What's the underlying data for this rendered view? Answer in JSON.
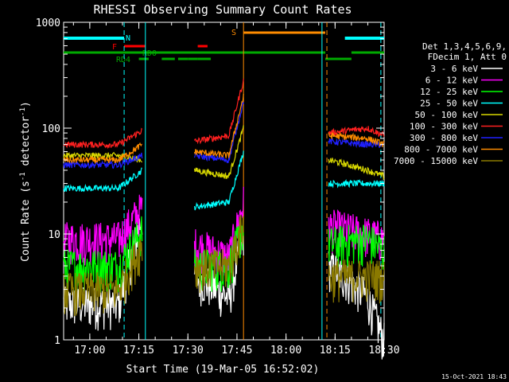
{
  "chart_data": {
    "type": "line",
    "title": "RHESSI Observing Summary Count Rates",
    "xlabel": "Start Time (19-Mar-05 16:52:02)",
    "ylabel_main": "Count Rate (s",
    "ylabel_sup1": "-1",
    "ylabel_mid": " detector",
    "ylabel_sup2": "-1",
    "ylabel_end": ")",
    "y_scale": "log",
    "ylim": [
      1,
      1000
    ],
    "xlim_minutes": [
      0,
      98
    ],
    "x_ticks": [
      {
        "m": 8,
        "label": "17:00"
      },
      {
        "m": 23,
        "label": "17:15"
      },
      {
        "m": 38,
        "label": "17:30"
      },
      {
        "m": 53,
        "label": "17:45"
      },
      {
        "m": 68,
        "label": "18:00"
      },
      {
        "m": 83,
        "label": "18:15"
      },
      {
        "m": 98,
        "label": "18:30"
      }
    ],
    "y_ticks": [
      {
        "v": 1,
        "label": "1"
      },
      {
        "v": 10,
        "label": "10"
      },
      {
        "v": 100,
        "label": "100"
      },
      {
        "v": 1000,
        "label": "1000"
      }
    ],
    "legend": {
      "placement": "right",
      "header": [
        "Det 1,3,4,5,6,9,",
        "FDecim 1, Att 0"
      ],
      "entries": [
        {
          "name": "3 - 6 keV",
          "color": "#ffffff"
        },
        {
          "name": "6 - 12 keV",
          "color": "#ff00ff"
        },
        {
          "name": "12 - 25 keV",
          "color": "#00ff00"
        },
        {
          "name": "25 - 50 keV",
          "color": "#00ffff"
        },
        {
          "name": "50 - 100 keV",
          "color": "#d8d800"
        },
        {
          "name": "100 - 300 keV",
          "color": "#ff2020"
        },
        {
          "name": "300 - 800 keV",
          "color": "#2020ff"
        },
        {
          "name": "800 - 7000 keV",
          "color": "#ff8c00"
        },
        {
          "name": "7000 - 15000 keV",
          "color": "#8b7a00"
        }
      ]
    },
    "flags": [
      {
        "label": "N",
        "color": "#00ffff",
        "intervals": [
          [
            0,
            18.5
          ],
          [
            86,
            98
          ]
        ]
      },
      {
        "label": "S",
        "color": "#ff8c00",
        "intervals": [
          [
            55,
            80
          ]
        ]
      },
      {
        "label": "F",
        "color": "#ff0000",
        "intervals": [
          [
            18.5,
            25
          ],
          [
            41,
            44
          ]
        ]
      },
      {
        "label": "RDO",
        "color": "#00aa00",
        "intervals": [
          [
            0,
            80
          ],
          [
            88,
            98
          ]
        ]
      },
      {
        "label": "RD4",
        "color": "#00aa00",
        "intervals": [
          [
            23,
            26
          ],
          [
            30,
            34
          ],
          [
            35,
            38
          ],
          [
            38,
            40
          ],
          [
            40,
            41
          ],
          [
            41,
            45
          ],
          [
            80,
            88
          ]
        ]
      }
    ],
    "vlines": [
      {
        "m": 18.5,
        "color": "#00ffff",
        "style": "dashed"
      },
      {
        "m": 25,
        "color": "#00ffff",
        "style": "solid"
      },
      {
        "m": 55,
        "color": "#ff8c00",
        "style": "solid"
      },
      {
        "m": 79,
        "color": "#00ffff",
        "style": "solid"
      },
      {
        "m": 80.5,
        "color": "#ff8c00",
        "style": "dashed"
      },
      {
        "m": 97,
        "color": "#00ffff",
        "style": "dashed"
      }
    ],
    "segments": [
      {
        "t0": 0,
        "t1": 24
      },
      {
        "t0": 40,
        "t1": 55
      },
      {
        "t0": 81,
        "t1": 98
      }
    ],
    "series_levels": [
      {
        "name": "3 - 6 keV",
        "a": [
          2.2,
          2.2,
          15
        ],
        "b": [
          4,
          2.5,
          10
        ],
        "c": [
          5,
          2.5,
          1
        ]
      },
      {
        "name": "6 - 12 keV",
        "a": [
          9,
          9,
          18
        ],
        "b": [
          8,
          6,
          20
        ],
        "c": [
          12,
          10,
          9
        ]
      },
      {
        "name": "12 - 25 keV",
        "a": [
          5,
          5,
          11
        ],
        "b": [
          5,
          5,
          12
        ],
        "c": [
          8,
          9,
          7
        ]
      },
      {
        "name": "25 - 50 keV",
        "a": [
          27,
          27,
          40
        ],
        "b": [
          18,
          20,
          60
        ],
        "c": [
          30,
          30,
          30
        ]
      },
      {
        "name": "50 - 100 keV",
        "a": [
          55,
          55,
          50
        ],
        "b": [
          40,
          35,
          100
        ],
        "c": [
          50,
          40,
          35
        ]
      },
      {
        "name": "100 - 300 keV",
        "a": [
          70,
          70,
          95
        ],
        "b": [
          75,
          85,
          280
        ],
        "c": [
          90,
          100,
          85
        ]
      },
      {
        "name": "300 - 800 keV",
        "a": [
          45,
          45,
          55
        ],
        "b": [
          55,
          50,
          180
        ],
        "c": [
          75,
          70,
          70
        ]
      },
      {
        "name": "800 - 7000 keV",
        "a": [
          50,
          50,
          70
        ],
        "b": [
          60,
          55,
          200
        ],
        "c": [
          85,
          80,
          70
        ]
      },
      {
        "name": "7000 - 15000 keV",
        "a": [
          3,
          3,
          8
        ],
        "b": [
          5,
          5,
          13
        ],
        "c": [
          4,
          4,
          4
        ]
      }
    ],
    "footer_timestamp": "15-Oct-2021 18:43"
  }
}
